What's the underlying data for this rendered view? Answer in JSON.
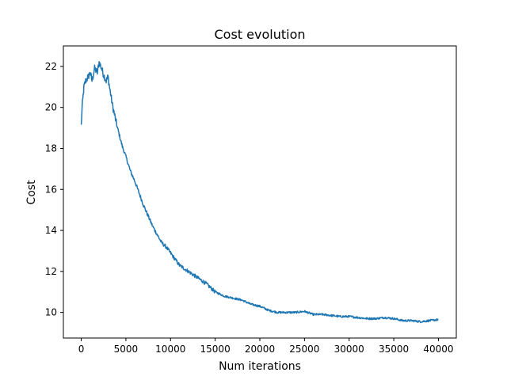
{
  "chart_data": {
    "type": "line",
    "title": "Cost evolution",
    "xlabel": "Num iterations",
    "ylabel": "Cost",
    "xlim": [
      -2000,
      42000
    ],
    "ylim": [
      8.75,
      23.0
    ],
    "xticks": [
      0,
      5000,
      10000,
      15000,
      20000,
      25000,
      30000,
      35000,
      40000
    ],
    "xtick_labels": [
      "0",
      "5000",
      "10000",
      "15000",
      "20000",
      "25000",
      "30000",
      "35000",
      "40000"
    ],
    "yticks": [
      10,
      12,
      14,
      16,
      18,
      20,
      22
    ],
    "ytick_labels": [
      "10",
      "12",
      "14",
      "16",
      "18",
      "20",
      "22"
    ],
    "grid": false,
    "series": [
      {
        "color": "#1f77b4",
        "x": [
          0,
          100,
          300,
          500,
          800,
          1000,
          1200,
          1500,
          1800,
          2000,
          2200,
          2500,
          2800,
          3000,
          3200,
          3500,
          3800,
          4000,
          4300,
          4600,
          5000,
          5500,
          6000,
          6500,
          7000,
          7500,
          8000,
          8500,
          9000,
          9500,
          10000,
          10500,
          11000,
          12000,
          13000,
          14000,
          15000,
          16000,
          17000,
          18000,
          19000,
          20000,
          21000,
          22000,
          23000,
          24000,
          25000,
          26000,
          27000,
          28000,
          29000,
          30000,
          31000,
          32000,
          33000,
          34000,
          35000,
          36000,
          37000,
          38000,
          39000,
          40000
        ],
        "y": [
          19.1,
          20.0,
          21.0,
          21.3,
          21.5,
          21.7,
          21.3,
          21.9,
          21.7,
          22.2,
          22.0,
          21.6,
          21.3,
          21.5,
          20.9,
          20.1,
          19.5,
          19.1,
          18.6,
          18.1,
          17.6,
          16.9,
          16.4,
          15.8,
          15.2,
          14.7,
          14.2,
          13.8,
          13.4,
          13.2,
          12.9,
          12.6,
          12.3,
          12.0,
          11.7,
          11.4,
          11.0,
          10.8,
          10.7,
          10.6,
          10.4,
          10.3,
          10.1,
          10.0,
          10.0,
          10.0,
          10.05,
          9.9,
          9.9,
          9.85,
          9.8,
          9.8,
          9.75,
          9.7,
          9.7,
          9.75,
          9.7,
          9.6,
          9.6,
          9.55,
          9.6,
          9.65
        ]
      }
    ]
  }
}
